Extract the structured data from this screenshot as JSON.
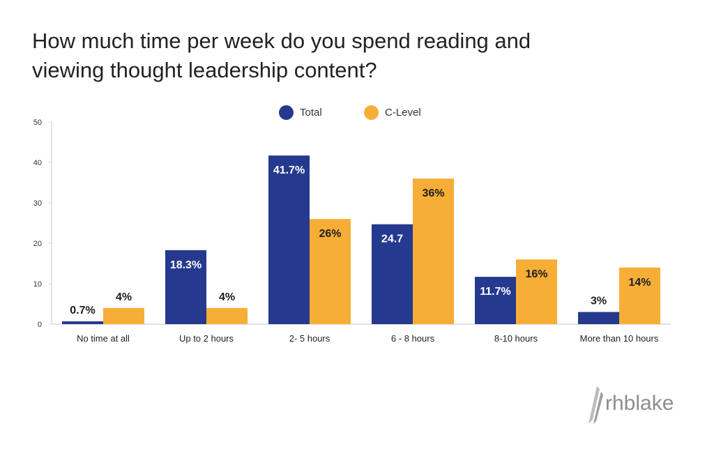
{
  "title": "How much time per week do you spend reading and viewing thought leadership content?",
  "colors": {
    "total": "#25398f",
    "c_level": "#f6ae37",
    "axis": "#d8d8d8",
    "label_dark": "#1d1d1f",
    "label_light": "#ffffff"
  },
  "logo": {
    "text": "rhblake"
  },
  "chart_data": {
    "type": "bar",
    "title": "How much time per week do you spend reading and viewing thought leadership content?",
    "xlabel": "",
    "ylabel": "",
    "ylim": [
      0,
      50
    ],
    "yticks": [
      "0",
      "10",
      "20",
      "30",
      "40",
      "50"
    ],
    "grid": false,
    "legend": "top",
    "categories": [
      "No time at all",
      "Up to 2 hours",
      "2- 5 hours",
      "6 - 8 hours",
      "8-10 hours",
      "More than 10 hours"
    ],
    "series": [
      {
        "name": "Total",
        "values": [
          0.7,
          18.3,
          41.7,
          24.7,
          11.7,
          3
        ],
        "labels": [
          "0.7%",
          "18.3%",
          "41.7%",
          "24.7",
          "11.7%",
          "3%"
        ]
      },
      {
        "name": "C-Level",
        "values": [
          4,
          4,
          26,
          36,
          16,
          14
        ],
        "labels": [
          "4%",
          "4%",
          "26%",
          "36%",
          "16%",
          "14%"
        ]
      }
    ]
  }
}
